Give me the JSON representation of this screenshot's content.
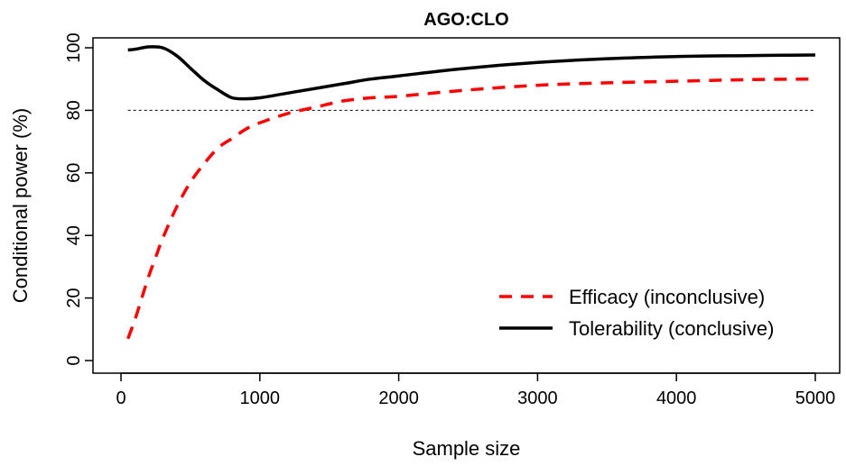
{
  "chart_data": {
    "type": "line",
    "title": "AGO:CLO",
    "xlabel": "Sample size",
    "ylabel": "Conditional power (%)",
    "xlim": [
      0,
      5000
    ],
    "ylim": [
      0,
      100
    ],
    "x_ticks": [
      0,
      1000,
      2000,
      3000,
      4000,
      5000
    ],
    "y_ticks": [
      0,
      20,
      40,
      60,
      80,
      100
    ],
    "grid": false,
    "legend_position": "bottom-right",
    "reference_line": {
      "y": 80,
      "style": "dotted",
      "color": "#000000"
    },
    "series": [
      {
        "name": "Efficacy (inconclusive)",
        "color": "#ff0000",
        "style": "dashed",
        "x": [
          50,
          100,
          150,
          200,
          250,
          300,
          400,
          500,
          600,
          700,
          800,
          900,
          1000,
          1200,
          1400,
          1600,
          1800,
          2000,
          2500,
          3000,
          3500,
          4000,
          4500,
          5000
        ],
        "y": [
          7,
          13,
          20,
          27,
          33,
          39,
          49,
          57,
          63,
          68,
          71,
          74,
          76,
          79,
          81,
          83,
          84,
          84.5,
          86.5,
          88,
          88.8,
          89.3,
          89.8,
          90
        ]
      },
      {
        "name": "Tolerability (conclusive)",
        "color": "#000000",
        "style": "solid",
        "x": [
          50,
          100,
          200,
          300,
          400,
          500,
          600,
          700,
          800,
          900,
          1000,
          1200,
          1400,
          1600,
          1800,
          2000,
          2500,
          3000,
          3500,
          4000,
          4500,
          5000
        ],
        "y": [
          99.3,
          99.5,
          100.3,
          100,
          97.5,
          93.5,
          89.5,
          86.5,
          84,
          83.7,
          84,
          85.5,
          87,
          88.5,
          90,
          91,
          93.5,
          95.3,
          96.5,
          97.2,
          97.5,
          97.7
        ]
      }
    ]
  }
}
